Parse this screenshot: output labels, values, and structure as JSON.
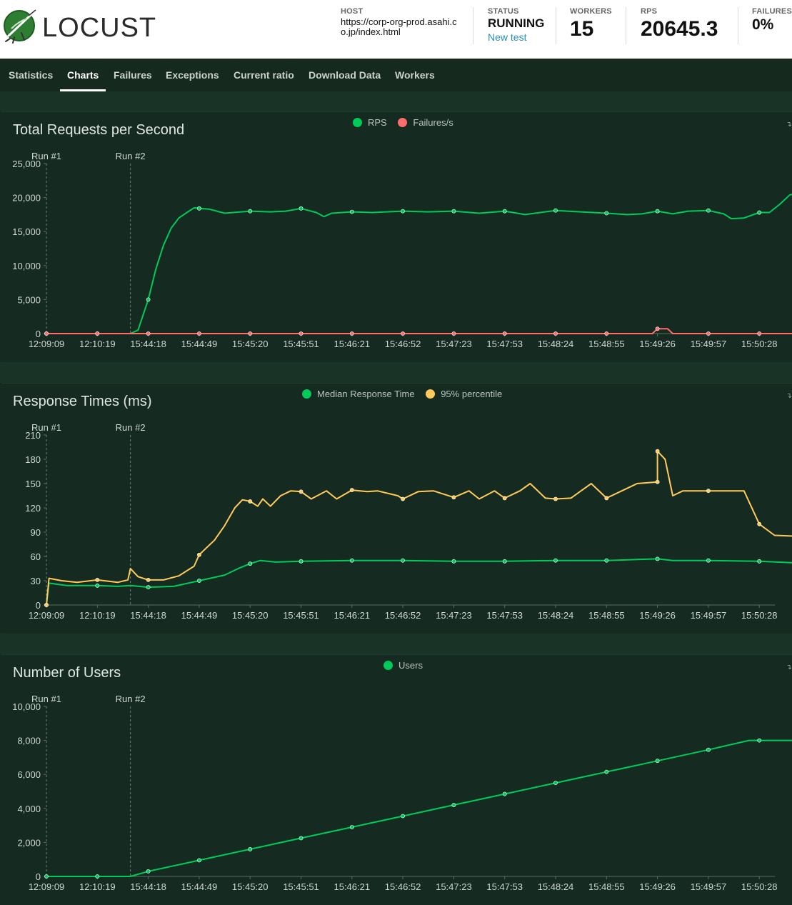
{
  "header": {
    "logo_text": "LOCUST",
    "host_label": "HOST",
    "host_value": "https://corp-org-prod.asahi.co.jp/index.html",
    "status_label": "STATUS",
    "status_value": "RUNNING",
    "new_test_label": "New test",
    "workers_label": "WORKERS",
    "workers_value": "15",
    "rps_label": "RPS",
    "rps_value": "20645.3",
    "failures_label": "FAILURES",
    "failures_value": "0%"
  },
  "tabs": [
    {
      "label": "Statistics",
      "active": false
    },
    {
      "label": "Charts",
      "active": true
    },
    {
      "label": "Failures",
      "active": false
    },
    {
      "label": "Exceptions",
      "active": false
    },
    {
      "label": "Current ratio",
      "active": false
    },
    {
      "label": "Download Data",
      "active": false
    },
    {
      "label": "Workers",
      "active": false
    }
  ],
  "colors": {
    "green": "#00ca5a",
    "red": "#ff6d6d",
    "yellow": "#ffca5a",
    "axis_text": "#cfd8d3",
    "grid": "#234434"
  },
  "chart_data": [
    {
      "type": "line",
      "title": "Total Requests per Second",
      "run_markers": [
        {
          "label": "Run #1",
          "index": 0
        },
        {
          "label": "Run #2",
          "index": 1.65
        }
      ],
      "x": [
        "12:09:09",
        "12:10:19",
        "15:44:18",
        "15:44:49",
        "15:45:20",
        "15:45:51",
        "15:46:21",
        "15:46:52",
        "15:47:23",
        "15:47:53",
        "15:48:24",
        "15:48:55",
        "15:49:26",
        "15:49:57",
        "15:50:28"
      ],
      "ylim": [
        0,
        25000
      ],
      "yticks": [
        0,
        5000,
        10000,
        15000,
        20000,
        25000
      ],
      "legend_position": "top-center",
      "series": [
        {
          "name": "RPS",
          "color": "#00ca5a",
          "points": [
            [
              0,
              0
            ],
            [
              1,
              0
            ],
            [
              1.65,
              0
            ],
            [
              1.8,
              500
            ],
            [
              2,
              5000
            ],
            [
              2.15,
              9500
            ],
            [
              2.3,
              13000
            ],
            [
              2.45,
              15500
            ],
            [
              2.6,
              17000
            ],
            [
              2.8,
              18000
            ],
            [
              2.9,
              18500
            ],
            [
              3,
              18400
            ],
            [
              3.2,
              18300
            ],
            [
              3.5,
              17700
            ],
            [
              4,
              18000
            ],
            [
              4.4,
              17900
            ],
            [
              4.7,
              18000
            ],
            [
              5,
              18400
            ],
            [
              5.3,
              17800
            ],
            [
              5.45,
              17200
            ],
            [
              5.6,
              17700
            ],
            [
              6,
              17900
            ],
            [
              6.4,
              17800
            ],
            [
              7,
              18000
            ],
            [
              7.5,
              17900
            ],
            [
              8,
              18000
            ],
            [
              8.5,
              17700
            ],
            [
              9,
              18000
            ],
            [
              9.4,
              17500
            ],
            [
              9.7,
              17800
            ],
            [
              10,
              18100
            ],
            [
              10.5,
              17900
            ],
            [
              11,
              17700
            ],
            [
              11.4,
              17500
            ],
            [
              11.7,
              17600
            ],
            [
              12,
              18000
            ],
            [
              12.3,
              17600
            ],
            [
              12.6,
              18000
            ],
            [
              13,
              18100
            ],
            [
              13.3,
              17600
            ],
            [
              13.45,
              16900
            ],
            [
              13.7,
              17000
            ],
            [
              14,
              17800
            ],
            [
              14.2,
              17800
            ],
            [
              14.4,
              19000
            ],
            [
              14.6,
              20400
            ],
            [
              14.75,
              20600
            ]
          ]
        },
        {
          "name": "Failures/s",
          "color": "#ff6d6d",
          "points": [
            [
              0,
              0
            ],
            [
              1,
              0
            ],
            [
              2,
              0
            ],
            [
              3,
              0
            ],
            [
              4,
              0
            ],
            [
              5,
              0
            ],
            [
              6,
              0
            ],
            [
              7,
              0
            ],
            [
              8,
              0
            ],
            [
              9,
              0
            ],
            [
              10,
              0
            ],
            [
              11,
              0
            ],
            [
              11.9,
              0
            ],
            [
              12,
              700
            ],
            [
              12.2,
              700
            ],
            [
              12.3,
              0
            ],
            [
              13,
              0
            ],
            [
              14,
              0
            ],
            [
              14.75,
              0
            ]
          ]
        }
      ]
    },
    {
      "type": "line",
      "title": "Response Times (ms)",
      "run_markers": [
        {
          "label": "Run #1",
          "index": 0
        },
        {
          "label": "Run #2",
          "index": 1.65
        }
      ],
      "x": [
        "12:09:09",
        "12:10:19",
        "15:44:18",
        "15:44:49",
        "15:45:20",
        "15:45:51",
        "15:46:21",
        "15:46:52",
        "15:47:23",
        "15:47:53",
        "15:48:24",
        "15:48:55",
        "15:49:26",
        "15:49:57",
        "15:50:28"
      ],
      "ylim": [
        0,
        210
      ],
      "yticks": [
        0,
        30,
        60,
        90,
        120,
        150,
        180,
        210
      ],
      "legend_position": "top-center",
      "series": [
        {
          "name": "Median Response Time",
          "color": "#00ca5a",
          "points": [
            [
              0,
              0
            ],
            [
              0.05,
              27
            ],
            [
              0.4,
              24
            ],
            [
              1,
              24
            ],
            [
              1.4,
              23
            ],
            [
              1.65,
              24
            ],
            [
              2,
              22
            ],
            [
              2.5,
              23
            ],
            [
              3,
              30
            ],
            [
              3.5,
              37
            ],
            [
              3.8,
              46
            ],
            [
              4,
              51
            ],
            [
              4.2,
              55
            ],
            [
              4.5,
              53
            ],
            [
              5,
              54
            ],
            [
              6,
              55
            ],
            [
              7,
              55
            ],
            [
              8,
              54
            ],
            [
              9,
              54
            ],
            [
              10,
              55
            ],
            [
              11,
              55
            ],
            [
              12,
              57
            ],
            [
              12.3,
              55
            ],
            [
              13,
              55
            ],
            [
              14,
              54
            ],
            [
              14.75,
              52
            ]
          ]
        },
        {
          "name": "95% percentile",
          "color": "#ffca5a",
          "points": [
            [
              0,
              0
            ],
            [
              0.05,
              33
            ],
            [
              0.3,
              30
            ],
            [
              0.6,
              28
            ],
            [
              1,
              31
            ],
            [
              1.4,
              28
            ],
            [
              1.6,
              31
            ],
            [
              1.65,
              45
            ],
            [
              1.8,
              35
            ],
            [
              2,
              31
            ],
            [
              2.3,
              31
            ],
            [
              2.6,
              36
            ],
            [
              2.9,
              48
            ],
            [
              3,
              62
            ],
            [
              3.3,
              80
            ],
            [
              3.5,
              98
            ],
            [
              3.7,
              120
            ],
            [
              3.85,
              130
            ],
            [
              4,
              128
            ],
            [
              4.15,
              122
            ],
            [
              4.25,
              131
            ],
            [
              4.4,
              122
            ],
            [
              4.6,
              135
            ],
            [
              4.8,
              141
            ],
            [
              5,
              140
            ],
            [
              5.2,
              131
            ],
            [
              5.5,
              141
            ],
            [
              5.7,
              131
            ],
            [
              6,
              142
            ],
            [
              6.3,
              140
            ],
            [
              6.5,
              141
            ],
            [
              6.9,
              135
            ],
            [
              7,
              131
            ],
            [
              7.3,
              140
            ],
            [
              7.6,
              141
            ],
            [
              8,
              133
            ],
            [
              8.3,
              141
            ],
            [
              8.5,
              131
            ],
            [
              8.8,
              141
            ],
            [
              9,
              132
            ],
            [
              9.3,
              141
            ],
            [
              9.5,
              150
            ],
            [
              9.8,
              132
            ],
            [
              10,
              131
            ],
            [
              10.3,
              132
            ],
            [
              10.5,
              141
            ],
            [
              10.7,
              150
            ],
            [
              11,
              132
            ],
            [
              11.3,
              141
            ],
            [
              11.6,
              150
            ],
            [
              12,
              152
            ],
            [
              12,
              190
            ],
            [
              12.15,
              180
            ],
            [
              12.3,
              135
            ],
            [
              12.5,
              141
            ],
            [
              13,
              141
            ],
            [
              13.4,
              141
            ],
            [
              13.7,
              141
            ],
            [
              14,
              100
            ],
            [
              14.3,
              86
            ],
            [
              14.75,
              85
            ]
          ]
        }
      ]
    },
    {
      "type": "line",
      "title": "Number of Users",
      "run_markers": [
        {
          "label": "Run #1",
          "index": 0
        },
        {
          "label": "Run #2",
          "index": 1.65
        }
      ],
      "x": [
        "12:09:09",
        "12:10:19",
        "15:44:18",
        "15:44:49",
        "15:45:20",
        "15:45:51",
        "15:46:21",
        "15:46:52",
        "15:47:23",
        "15:47:53",
        "15:48:24",
        "15:48:55",
        "15:49:26",
        "15:49:57",
        "15:50:28"
      ],
      "ylim": [
        0,
        10000
      ],
      "yticks": [
        0,
        2000,
        4000,
        6000,
        8000,
        10000
      ],
      "legend_position": "top-center",
      "series": [
        {
          "name": "Users",
          "color": "#00ca5a",
          "points": [
            [
              0,
              0
            ],
            [
              1,
              0
            ],
            [
              1.65,
              0
            ],
            [
              2,
              300
            ],
            [
              3,
              950
            ],
            [
              4,
              1600
            ],
            [
              5,
              2250
            ],
            [
              6,
              2900
            ],
            [
              7,
              3550
            ],
            [
              8,
              4200
            ],
            [
              9,
              4850
            ],
            [
              10,
              5500
            ],
            [
              11,
              6150
            ],
            [
              12,
              6800
            ],
            [
              13,
              7450
            ],
            [
              13.8,
              8000
            ],
            [
              14,
              8000
            ],
            [
              14.75,
              8000
            ]
          ]
        }
      ]
    }
  ]
}
